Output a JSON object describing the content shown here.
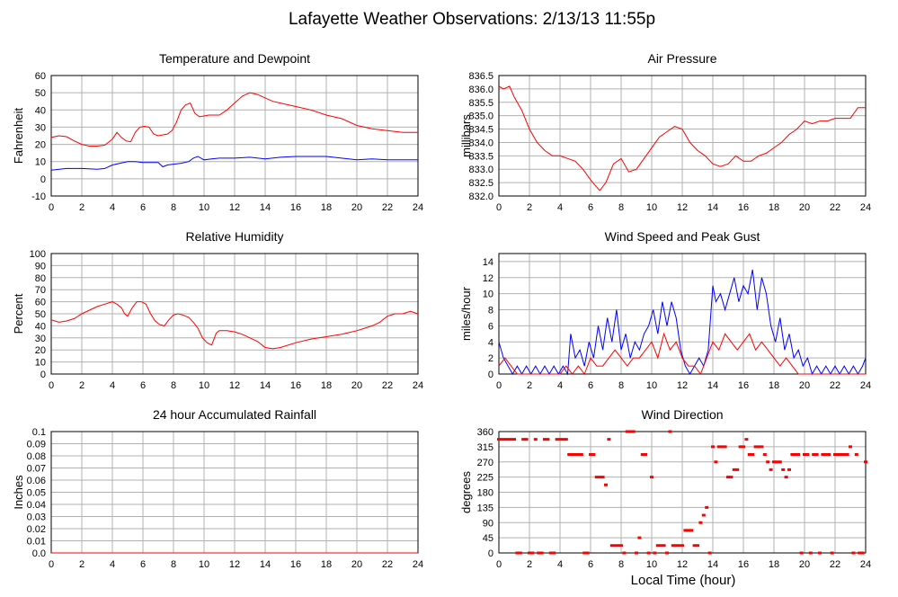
{
  "page_title": "Lafayette Weather Observations: 2/13/13 11:55p",
  "chart_data": [
    {
      "type": "line",
      "title": "Temperature and Dewpoint",
      "xlabel": "",
      "ylabel": "Fahrenheit",
      "xlim": [
        0,
        24
      ],
      "ylim": [
        -10,
        60
      ],
      "xticks": [
        0,
        2,
        4,
        6,
        8,
        10,
        12,
        14,
        16,
        18,
        20,
        22,
        24
      ],
      "yticks": [
        -10,
        0,
        10,
        20,
        30,
        40,
        50,
        60
      ],
      "grid": true,
      "colors": [
        "#ff0000",
        "#0000ff"
      ],
      "series": [
        {
          "x": [
            0,
            0.5,
            1,
            1.5,
            2,
            2.5,
            3,
            3.5,
            4,
            4.3,
            4.6,
            4.9,
            5.2,
            5.5,
            5.8,
            6.1,
            6.4,
            6.7,
            7,
            7.3,
            7.6,
            7.9,
            8.2,
            8.5,
            8.8,
            9.1,
            9.4,
            9.7,
            10,
            10.3,
            10.6,
            11,
            11.5,
            12,
            12.5,
            13,
            13.5,
            14,
            14.5,
            15,
            16,
            17,
            18,
            19,
            20,
            21,
            22,
            23,
            24
          ],
          "y": [
            24,
            25,
            24.5,
            22,
            20,
            19,
            19,
            19.5,
            23,
            27,
            24,
            22,
            21.5,
            27,
            30,
            30.5,
            30,
            26,
            25,
            25.5,
            26,
            28,
            33,
            40,
            43,
            44,
            38,
            36,
            36.5,
            37,
            37,
            37,
            40,
            44,
            48,
            50,
            49,
            47,
            45,
            44,
            42,
            40,
            37,
            35,
            31,
            29,
            28,
            27,
            27
          ]
        },
        {
          "x": [
            0,
            1,
            2,
            3,
            3.5,
            4,
            4.5,
            5,
            5.5,
            6,
            6.5,
            7,
            7.3,
            7.6,
            8,
            8.5,
            9,
            9.3,
            9.6,
            10,
            10.5,
            11,
            12,
            13,
            14,
            15,
            16,
            17,
            18,
            19,
            20,
            21,
            22,
            23,
            24
          ],
          "y": [
            5,
            6,
            6,
            5.5,
            6,
            8,
            9,
            10,
            10,
            9.5,
            9.5,
            9.5,
            7,
            8,
            8.5,
            9,
            10,
            12,
            13,
            11,
            11.5,
            12,
            12,
            12.5,
            11.5,
            12.5,
            13,
            13,
            13,
            12,
            11,
            11.5,
            11,
            11,
            11
          ]
        }
      ]
    },
    {
      "type": "line",
      "title": "Air Pressure",
      "xlabel": "",
      "ylabel": "millibars",
      "xlim": [
        0,
        24
      ],
      "ylim": [
        832.0,
        836.5
      ],
      "xticks": [
        0,
        2,
        4,
        6,
        8,
        10,
        12,
        14,
        16,
        18,
        20,
        22,
        24
      ],
      "ytick_labels": [
        "832.0",
        "832.5",
        "833.0",
        "833.5",
        "834.0",
        "834.5",
        "835.0",
        "835.5",
        "836.0",
        "836.5"
      ],
      "grid": true,
      "colors": [
        "#ff0000"
      ],
      "series": [
        {
          "x": [
            0,
            0.3,
            0.7,
            1,
            1.5,
            2,
            2.5,
            3,
            3.5,
            4,
            4.5,
            5,
            5.5,
            6,
            6.3,
            6.6,
            7,
            7.5,
            8,
            8.5,
            9,
            9.5,
            10,
            10.5,
            11,
            11.5,
            12,
            12.5,
            13,
            13.5,
            14,
            14.5,
            15,
            15.5,
            16,
            16.5,
            17,
            17.5,
            18,
            18.5,
            19,
            19.5,
            20,
            20.5,
            21,
            21.5,
            22,
            22.5,
            23,
            23.5,
            24
          ],
          "y": [
            836.1,
            836.0,
            836.1,
            835.7,
            835.2,
            834.5,
            834.0,
            833.7,
            833.5,
            833.5,
            833.4,
            833.3,
            833.0,
            832.6,
            832.4,
            832.2,
            832.5,
            833.2,
            833.4,
            832.9,
            833.0,
            833.4,
            833.8,
            834.2,
            834.4,
            834.6,
            834.5,
            834.0,
            833.7,
            833.5,
            833.2,
            833.1,
            833.2,
            833.5,
            833.3,
            833.3,
            833.5,
            833.6,
            833.8,
            834.0,
            834.3,
            834.5,
            834.8,
            834.7,
            834.8,
            834.8,
            834.9,
            834.9,
            834.9,
            835.3,
            835.3
          ]
        }
      ]
    },
    {
      "type": "line",
      "title": "Relative Humidity",
      "xlabel": "",
      "ylabel": "Percent",
      "xlim": [
        0,
        24
      ],
      "ylim": [
        0,
        100
      ],
      "xticks": [
        0,
        2,
        4,
        6,
        8,
        10,
        12,
        14,
        16,
        18,
        20,
        22,
        24
      ],
      "yticks": [
        0,
        10,
        20,
        30,
        40,
        50,
        60,
        70,
        80,
        90,
        100
      ],
      "grid": true,
      "colors": [
        "#ff0000"
      ],
      "series": [
        {
          "x": [
            0,
            0.5,
            1,
            1.5,
            2,
            2.5,
            3,
            3.5,
            4,
            4.3,
            4.6,
            4.8,
            5,
            5.3,
            5.6,
            5.9,
            6.2,
            6.5,
            6.8,
            7.1,
            7.4,
            7.7,
            8,
            8.3,
            8.6,
            9,
            9.3,
            9.6,
            9.9,
            10.2,
            10.5,
            10.8,
            11,
            11.5,
            12,
            12.5,
            13,
            13.5,
            14,
            14.5,
            15,
            16,
            17,
            18,
            19,
            20,
            20.5,
            21,
            21.5,
            22,
            22.5,
            23,
            23.5,
            24
          ],
          "y": [
            45,
            43,
            44,
            46,
            50,
            53,
            56,
            58,
            60,
            58,
            55,
            50,
            48,
            55,
            60,
            60,
            58,
            50,
            44,
            41,
            40,
            45,
            49,
            50,
            49,
            47,
            43,
            38,
            30,
            26,
            24,
            34,
            36,
            36,
            35,
            33,
            30,
            27,
            22,
            21,
            22,
            26,
            29,
            31,
            33,
            36,
            38,
            40,
            43,
            48,
            50,
            50,
            52,
            50
          ]
        }
      ]
    },
    {
      "type": "line",
      "title": "Wind Speed and Peak Gust",
      "xlabel": "",
      "ylabel": "miles/hour",
      "xlim": [
        0,
        24
      ],
      "ylim": [
        0,
        15
      ],
      "xticks": [
        0,
        2,
        4,
        6,
        8,
        10,
        12,
        14,
        16,
        18,
        20,
        22,
        24
      ],
      "yticks": [
        0,
        2,
        4,
        6,
        8,
        10,
        12,
        14
      ],
      "grid": true,
      "colors": [
        "#0000ff",
        "#ff0000"
      ],
      "series": [
        {
          "x": [
            0,
            0.3,
            0.6,
            0.9,
            1.2,
            1.5,
            1.8,
            2.1,
            2.4,
            2.7,
            3,
            3.3,
            3.6,
            3.9,
            4.2,
            4.5,
            4.7,
            5,
            5.3,
            5.6,
            5.9,
            6.2,
            6.5,
            6.8,
            7.1,
            7.4,
            7.7,
            8,
            8.3,
            8.6,
            8.9,
            9.2,
            9.5,
            9.8,
            10.1,
            10.4,
            10.7,
            11,
            11.3,
            11.6,
            11.9,
            12.2,
            12.5,
            12.8,
            13.1,
            13.4,
            13.7,
            14,
            14.2,
            14.5,
            14.8,
            15.1,
            15.4,
            15.7,
            16,
            16.3,
            16.6,
            16.9,
            17.2,
            17.5,
            17.8,
            18.1,
            18.4,
            18.7,
            19,
            19.3,
            19.6,
            19.9,
            20.2,
            20.5,
            20.8,
            21.1,
            21.4,
            21.7,
            22,
            22.3,
            22.6,
            22.9,
            23.2,
            23.5,
            23.8,
            24
          ],
          "y": [
            4,
            2,
            1,
            0,
            1,
            0,
            1,
            0,
            1,
            0,
            1,
            0,
            1,
            0,
            1,
            0,
            5,
            2,
            3,
            1,
            4,
            2,
            6,
            3,
            7,
            4,
            8,
            3,
            5,
            2,
            4,
            3,
            5,
            6,
            8,
            5,
            9,
            6,
            9,
            7,
            3,
            1,
            0,
            1,
            2,
            1,
            3,
            11,
            9,
            10,
            8,
            10,
            12,
            9,
            11,
            10,
            13,
            8,
            12,
            10,
            6,
            4,
            7,
            3,
            5,
            2,
            3,
            1,
            2,
            0,
            1,
            0,
            1,
            0,
            1,
            0,
            1,
            0,
            1,
            0,
            1,
            2
          ]
        },
        {
          "x": [
            0,
            0.4,
            0.8,
            1.2,
            1.6,
            2,
            3,
            4,
            4.4,
            4.8,
            5.2,
            5.6,
            6,
            6.4,
            6.8,
            7.2,
            7.6,
            8,
            8.4,
            8.8,
            9.2,
            9.6,
            10,
            10.4,
            10.8,
            11.2,
            11.6,
            12,
            12.4,
            12.8,
            13.2,
            13.6,
            14,
            14.4,
            14.8,
            15.2,
            15.6,
            16,
            16.4,
            16.8,
            17.2,
            17.6,
            18,
            18.4,
            18.8,
            19.2,
            19.6,
            20,
            21,
            22,
            23,
            24
          ],
          "y": [
            1,
            2,
            1,
            0,
            0,
            0,
            0,
            0,
            1,
            0,
            1,
            0,
            2,
            1,
            1,
            2,
            3,
            2,
            1,
            2,
            2,
            3,
            4,
            2,
            5,
            3,
            4,
            2,
            1,
            1,
            0,
            2,
            4,
            3,
            5,
            4,
            3,
            4,
            5,
            3,
            4,
            3,
            2,
            1,
            2,
            1,
            0,
            0,
            0,
            0,
            0,
            0
          ]
        }
      ]
    },
    {
      "type": "line",
      "title": "24 hour Accumulated Rainfall",
      "xlabel": "",
      "ylabel": "Inches",
      "xlim": [
        0,
        24
      ],
      "ylim": [
        0,
        0.1
      ],
      "xticks": [
        0,
        2,
        4,
        6,
        8,
        10,
        12,
        14,
        16,
        18,
        20,
        22,
        24
      ],
      "ytick_labels": [
        "0.0",
        "0.01",
        "0.02",
        "0.03",
        "0.04",
        "0.05",
        "0.06",
        "0.07",
        "0.08",
        "0.09",
        "0.1"
      ],
      "grid": true,
      "colors": [
        "#ff0000"
      ],
      "series": [
        {
          "x": [
            0,
            24
          ],
          "y": [
            0,
            0
          ]
        }
      ]
    },
    {
      "type": "scatter",
      "title": "Wind Direction",
      "xlabel": "Local Time (hour)",
      "ylabel": "degrees",
      "xlim": [
        0,
        24
      ],
      "ylim": [
        0,
        360
      ],
      "xticks": [
        0,
        2,
        4,
        6,
        8,
        10,
        12,
        14,
        16,
        18,
        20,
        22,
        24
      ],
      "yticks": [
        0,
        45,
        90,
        135,
        180,
        225,
        270,
        315,
        360
      ],
      "grid": true,
      "colors": [
        "#ff0000"
      ],
      "series": [
        {
          "x": [
            0,
            0.2,
            0.4,
            0.6,
            0.8,
            1,
            1.2,
            1.4,
            1.6,
            1.8,
            2,
            2.2,
            2.4,
            2.6,
            2.8,
            3,
            3.2,
            3.4,
            3.6,
            3.8,
            4,
            4.2,
            4.4,
            4.6,
            4.8,
            5,
            5.2,
            5.4,
            5.6,
            5.8,
            6,
            6.2,
            6.4,
            6.6,
            6.8,
            7,
            7.2,
            7.4,
            7.6,
            7.8,
            8,
            8.2,
            8.4,
            8.6,
            8.8,
            9,
            9.2,
            9.4,
            9.6,
            9.8,
            10,
            10.2,
            10.4,
            10.6,
            10.8,
            11,
            11.2,
            11.4,
            11.6,
            11.8,
            12,
            12.2,
            12.4,
            12.6,
            12.8,
            13,
            13.2,
            13.4,
            13.6,
            13.8,
            14,
            14.2,
            14.4,
            14.6,
            14.8,
            15,
            15.2,
            15.4,
            15.6,
            15.8,
            16,
            16.2,
            16.4,
            16.6,
            16.8,
            17,
            17.2,
            17.4,
            17.6,
            17.8,
            18,
            18.2,
            18.4,
            18.6,
            18.8,
            19,
            19.2,
            19.4,
            19.6,
            19.8,
            20,
            20.2,
            20.4,
            20.6,
            20.8,
            21,
            21.2,
            21.4,
            21.6,
            21.8,
            22,
            22.2,
            22.4,
            22.6,
            22.8,
            23,
            23.2,
            23.4,
            23.6,
            23.8,
            24
          ],
          "y": [
            337,
            337,
            337,
            337,
            337,
            337,
            0,
            0,
            337,
            337,
            0,
            0,
            337,
            0,
            0,
            337,
            337,
            0,
            0,
            337,
            337,
            337,
            337,
            292,
            292,
            292,
            292,
            292,
            0,
            0,
            292,
            292,
            225,
            225,
            225,
            202,
            337,
            22,
            22,
            22,
            22,
            0,
            360,
            360,
            360,
            0,
            45,
            292,
            292,
            0,
            225,
            0,
            22,
            22,
            22,
            0,
            360,
            22,
            22,
            22,
            22,
            67,
            67,
            67,
            22,
            22,
            90,
            112,
            135,
            0,
            315,
            270,
            315,
            315,
            315,
            225,
            225,
            247,
            247,
            315,
            315,
            337,
            292,
            292,
            315,
            315,
            315,
            292,
            270,
            247,
            270,
            270,
            270,
            247,
            225,
            247,
            292,
            292,
            292,
            0,
            292,
            292,
            0,
            292,
            292,
            0,
            292,
            292,
            292,
            0,
            292,
            292,
            292,
            292,
            292,
            315,
            0,
            292,
            0,
            0,
            270
          ]
        }
      ]
    }
  ]
}
